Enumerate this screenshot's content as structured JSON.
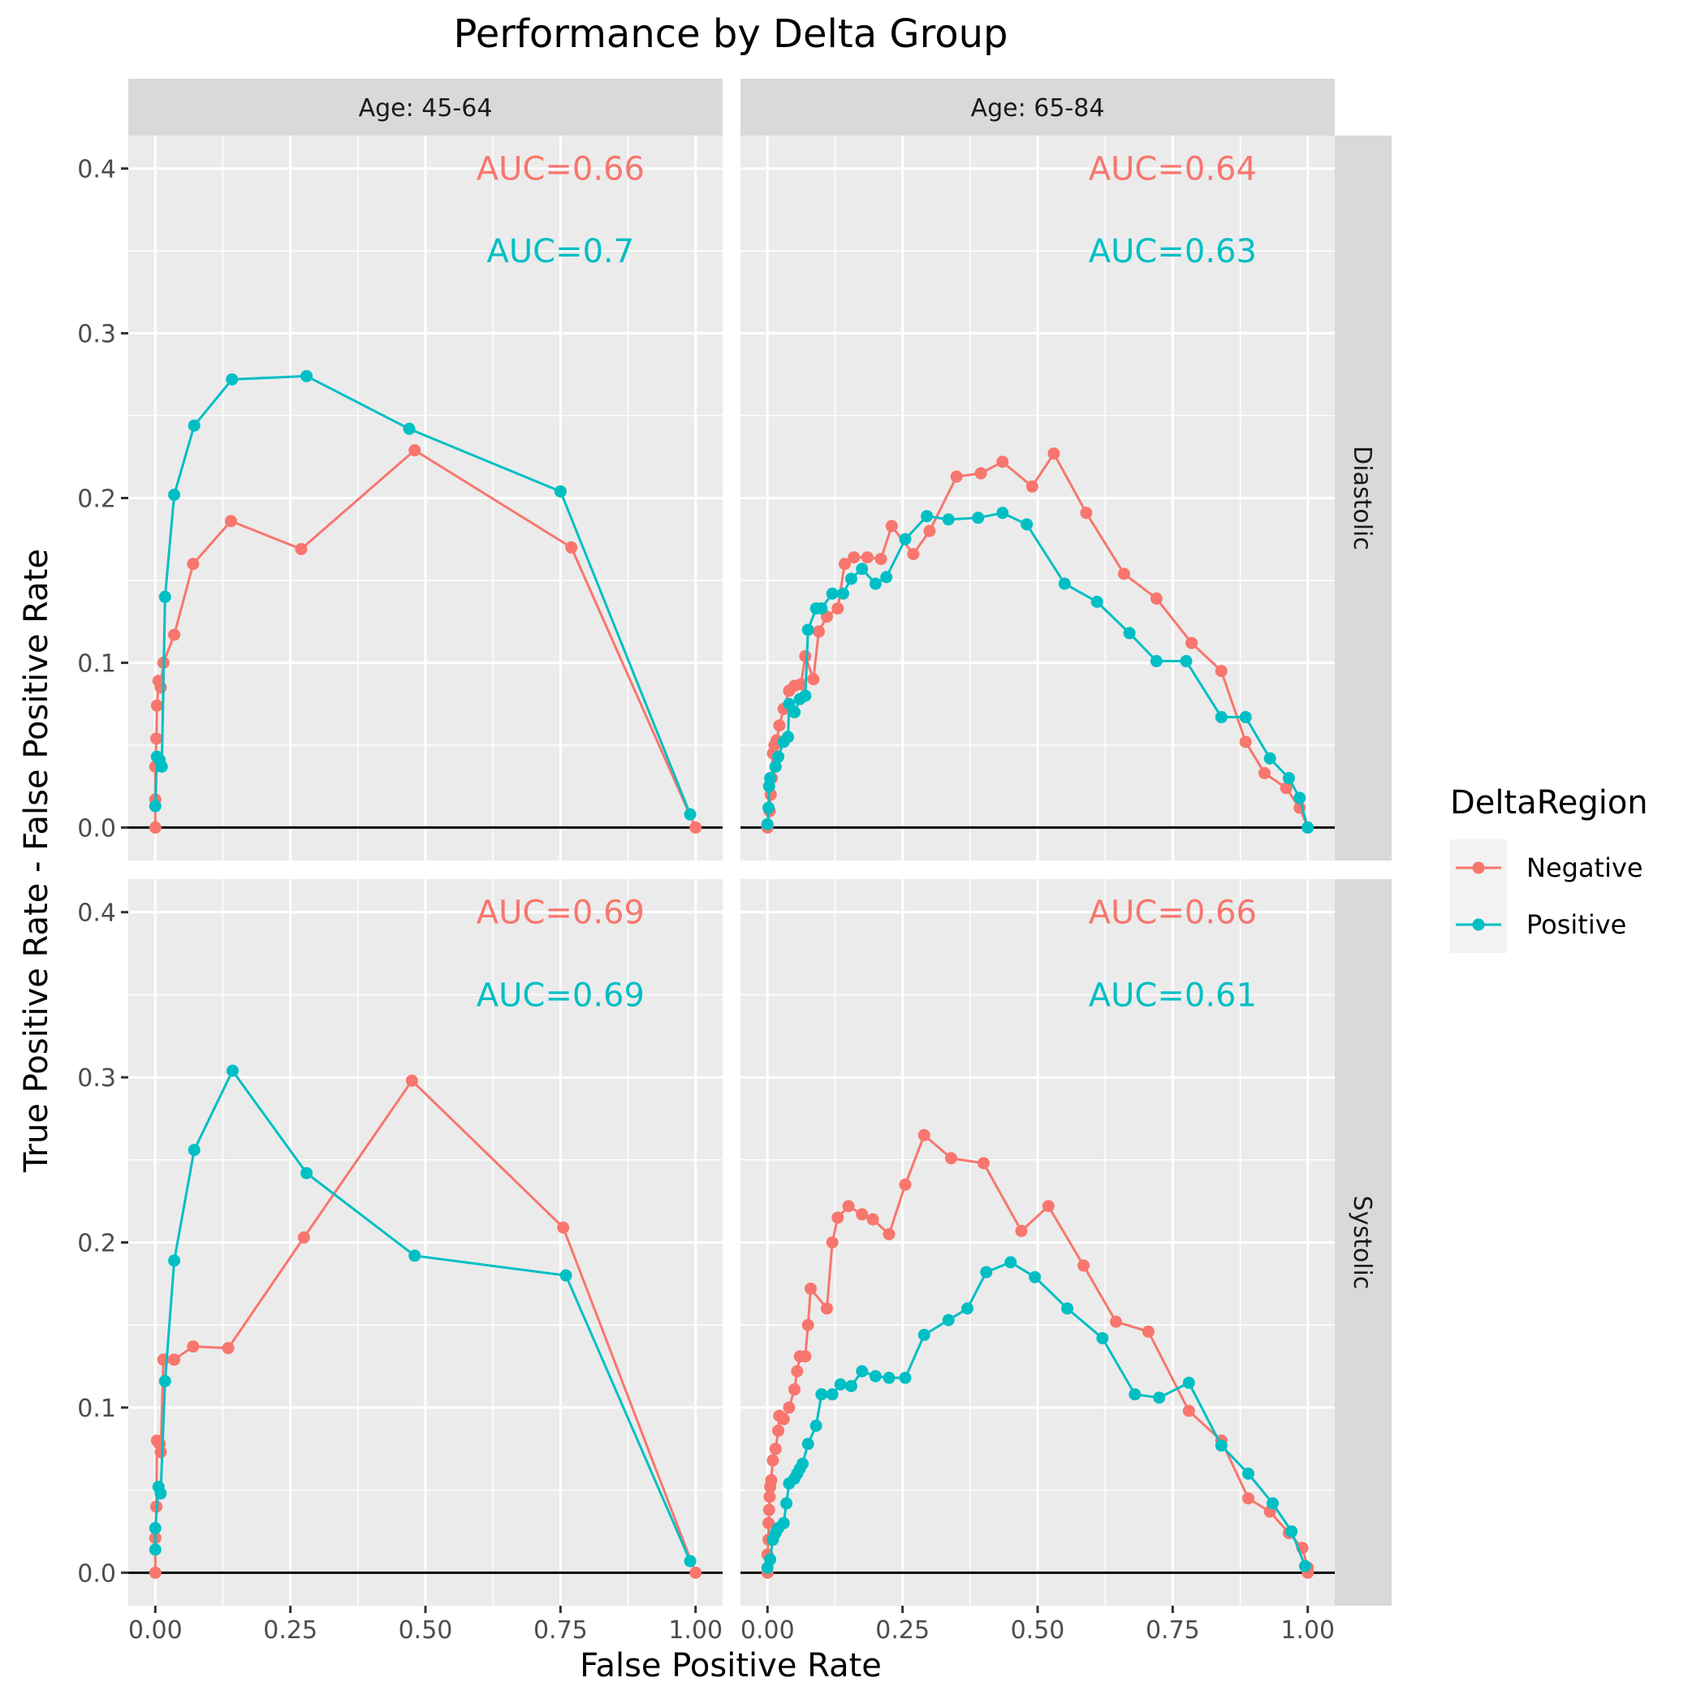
{
  "chart_data": {
    "type": "line",
    "title": "Performance by Delta Group",
    "xlabel": "False Positive Rate",
    "ylabel": "True Positive Rate - False Positive Rate",
    "xlim": [
      -0.05,
      1.05
    ],
    "ylim": [
      -0.02,
      0.42
    ],
    "x_ticks": [
      0,
      0.25,
      0.5,
      0.75,
      1
    ],
    "x_tick_labels": [
      "0.00",
      "0.25",
      "0.50",
      "0.75",
      "1.00"
    ],
    "y_ticks": [
      0,
      0.1,
      0.2,
      0.3,
      0.4
    ],
    "y_tick_labels": [
      "0.0",
      "0.1",
      "0.2",
      "0.3",
      "0.4"
    ],
    "grid": true,
    "reference_line_y": 0,
    "col_facets": [
      "Age: 45-64",
      "Age: 65-84"
    ],
    "row_facets": [
      "Diastolic",
      "Systolic"
    ],
    "legend": {
      "title": "DeltaRegion",
      "position": "right",
      "entries": [
        {
          "label": "Negative",
          "color": "#F8766D"
        },
        {
          "label": "Positive",
          "color": "#00BFC4"
        }
      ]
    },
    "panels": [
      {
        "col": 0,
        "row": 0,
        "auc_labels": {
          "Negative": "AUC=0.66",
          "Positive": "AUC=0.7"
        },
        "series": [
          {
            "name": "Negative",
            "color": "#F8766D",
            "points": [
              [
                0,
                0
              ],
              [
                0,
                0.017
              ],
              [
                0,
                0.037
              ],
              [
                0.002,
                0.054
              ],
              [
                0.003,
                0.074
              ],
              [
                0.006,
                0.089
              ],
              [
                0.01,
                0.085
              ],
              [
                0.015,
                0.1
              ],
              [
                0.035,
                0.117
              ],
              [
                0.07,
                0.16
              ],
              [
                0.14,
                0.186
              ],
              [
                0.27,
                0.169
              ],
              [
                0.48,
                0.229
              ],
              [
                0.77,
                0.17
              ],
              [
                1,
                0
              ]
            ]
          },
          {
            "name": "Positive",
            "color": "#00BFC4",
            "points": [
              [
                0,
                0.013
              ],
              [
                0.003,
                0.043
              ],
              [
                0.008,
                0.041
              ],
              [
                0.012,
                0.037
              ],
              [
                0.018,
                0.14
              ],
              [
                0.035,
                0.202
              ],
              [
                0.072,
                0.244
              ],
              [
                0.142,
                0.272
              ],
              [
                0.28,
                0.274
              ],
              [
                0.47,
                0.242
              ],
              [
                0.75,
                0.204
              ],
              [
                0.99,
                0.008
              ]
            ]
          }
        ]
      },
      {
        "col": 1,
        "row": 0,
        "auc_labels": {
          "Negative": "AUC=0.64",
          "Positive": "AUC=0.63"
        },
        "series": [
          {
            "name": "Negative",
            "color": "#F8766D",
            "points": [
              [
                0,
                0
              ],
              [
                0.004,
                0.01
              ],
              [
                0.006,
                0.02
              ],
              [
                0.008,
                0.03
              ],
              [
                0.01,
                0.045
              ],
              [
                0.013,
                0.05
              ],
              [
                0.017,
                0.053
              ],
              [
                0.022,
                0.062
              ],
              [
                0.03,
                0.072
              ],
              [
                0.04,
                0.083
              ],
              [
                0.05,
                0.086
              ],
              [
                0.062,
                0.087
              ],
              [
                0.07,
                0.104
              ],
              [
                0.085,
                0.09
              ],
              [
                0.095,
                0.119
              ],
              [
                0.11,
                0.128
              ],
              [
                0.13,
                0.133
              ],
              [
                0.143,
                0.16
              ],
              [
                0.16,
                0.164
              ],
              [
                0.185,
                0.164
              ],
              [
                0.21,
                0.163
              ],
              [
                0.23,
                0.183
              ],
              [
                0.27,
                0.166
              ],
              [
                0.3,
                0.18
              ],
              [
                0.35,
                0.213
              ],
              [
                0.395,
                0.215
              ],
              [
                0.435,
                0.222
              ],
              [
                0.49,
                0.207
              ],
              [
                0.53,
                0.227
              ],
              [
                0.59,
                0.191
              ],
              [
                0.66,
                0.154
              ],
              [
                0.72,
                0.139
              ],
              [
                0.785,
                0.112
              ],
              [
                0.84,
                0.095
              ],
              [
                0.885,
                0.052
              ],
              [
                0.92,
                0.033
              ],
              [
                0.96,
                0.024
              ],
              [
                0.985,
                0.012
              ],
              [
                1,
                0
              ]
            ]
          },
          {
            "name": "Positive",
            "color": "#00BFC4",
            "points": [
              [
                0,
                0.002
              ],
              [
                0.002,
                0.012
              ],
              [
                0.003,
                0.025
              ],
              [
                0.005,
                0.03
              ],
              [
                0.015,
                0.037
              ],
              [
                0.02,
                0.043
              ],
              [
                0.03,
                0.052
              ],
              [
                0.038,
                0.055
              ],
              [
                0.04,
                0.075
              ],
              [
                0.05,
                0.07
              ],
              [
                0.06,
                0.078
              ],
              [
                0.07,
                0.08
              ],
              [
                0.075,
                0.12
              ],
              [
                0.09,
                0.133
              ],
              [
                0.1,
                0.133
              ],
              [
                0.12,
                0.142
              ],
              [
                0.14,
                0.142
              ],
              [
                0.155,
                0.151
              ],
              [
                0.175,
                0.157
              ],
              [
                0.2,
                0.148
              ],
              [
                0.22,
                0.152
              ],
              [
                0.255,
                0.175
              ],
              [
                0.295,
                0.189
              ],
              [
                0.335,
                0.187
              ],
              [
                0.39,
                0.188
              ],
              [
                0.435,
                0.191
              ],
              [
                0.48,
                0.184
              ],
              [
                0.55,
                0.148
              ],
              [
                0.61,
                0.137
              ],
              [
                0.67,
                0.118
              ],
              [
                0.72,
                0.101
              ],
              [
                0.775,
                0.101
              ],
              [
                0.84,
                0.067
              ],
              [
                0.885,
                0.067
              ],
              [
                0.93,
                0.042
              ],
              [
                0.965,
                0.03
              ],
              [
                0.985,
                0.018
              ],
              [
                1,
                0
              ]
            ]
          }
        ]
      },
      {
        "col": 0,
        "row": 1,
        "auc_labels": {
          "Negative": "AUC=0.69",
          "Positive": "AUC=0.69"
        },
        "series": [
          {
            "name": "Negative",
            "color": "#F8766D",
            "points": [
              [
                0,
                0
              ],
              [
                0,
                0.021
              ],
              [
                0.002,
                0.04
              ],
              [
                0.003,
                0.08
              ],
              [
                0.008,
                0.078
              ],
              [
                0.01,
                0.073
              ],
              [
                0.015,
                0.129
              ],
              [
                0.035,
                0.129
              ],
              [
                0.07,
                0.137
              ],
              [
                0.135,
                0.136
              ],
              [
                0.275,
                0.203
              ],
              [
                0.475,
                0.298
              ],
              [
                0.755,
                0.209
              ],
              [
                1,
                0
              ]
            ]
          },
          {
            "name": "Positive",
            "color": "#00BFC4",
            "points": [
              [
                0,
                0.014
              ],
              [
                0,
                0.027
              ],
              [
                0.006,
                0.052
              ],
              [
                0.01,
                0.048
              ],
              [
                0.018,
                0.116
              ],
              [
                0.035,
                0.189
              ],
              [
                0.072,
                0.256
              ],
              [
                0.143,
                0.304
              ],
              [
                0.28,
                0.242
              ],
              [
                0.48,
                0.192
              ],
              [
                0.76,
                0.18
              ],
              [
                0.99,
                0.007
              ]
            ]
          }
        ]
      },
      {
        "col": 1,
        "row": 1,
        "auc_labels": {
          "Negative": "AUC=0.66",
          "Positive": "AUC=0.61"
        },
        "series": [
          {
            "name": "Negative",
            "color": "#F8766D",
            "points": [
              [
                0,
                0
              ],
              [
                0,
                0.011
              ],
              [
                0.002,
                0.02
              ],
              [
                0.002,
                0.03
              ],
              [
                0.003,
                0.038
              ],
              [
                0.004,
                0.046
              ],
              [
                0.005,
                0.052
              ],
              [
                0.007,
                0.056
              ],
              [
                0.01,
                0.068
              ],
              [
                0.015,
                0.075
              ],
              [
                0.02,
                0.086
              ],
              [
                0.022,
                0.095
              ],
              [
                0.03,
                0.093
              ],
              [
                0.04,
                0.1
              ],
              [
                0.05,
                0.111
              ],
              [
                0.055,
                0.122
              ],
              [
                0.06,
                0.131
              ],
              [
                0.07,
                0.131
              ],
              [
                0.075,
                0.15
              ],
              [
                0.08,
                0.172
              ],
              [
                0.11,
                0.16
              ],
              [
                0.12,
                0.2
              ],
              [
                0.13,
                0.215
              ],
              [
                0.15,
                0.222
              ],
              [
                0.175,
                0.217
              ],
              [
                0.195,
                0.214
              ],
              [
                0.225,
                0.205
              ],
              [
                0.255,
                0.235
              ],
              [
                0.29,
                0.265
              ],
              [
                0.34,
                0.251
              ],
              [
                0.4,
                0.248
              ],
              [
                0.47,
                0.207
              ],
              [
                0.52,
                0.222
              ],
              [
                0.585,
                0.186
              ],
              [
                0.645,
                0.152
              ],
              [
                0.705,
                0.146
              ],
              [
                0.78,
                0.098
              ],
              [
                0.84,
                0.08
              ],
              [
                0.89,
                0.045
              ],
              [
                0.93,
                0.037
              ],
              [
                0.965,
                0.024
              ],
              [
                0.99,
                0.015
              ],
              [
                1,
                0.003
              ],
              [
                1,
                0
              ]
            ]
          },
          {
            "name": "Positive",
            "color": "#00BFC4",
            "points": [
              [
                0,
                0.003
              ],
              [
                0.005,
                0.008
              ],
              [
                0.01,
                0.02
              ],
              [
                0.015,
                0.024
              ],
              [
                0.02,
                0.027
              ],
              [
                0.03,
                0.03
              ],
              [
                0.035,
                0.042
              ],
              [
                0.04,
                0.054
              ],
              [
                0.05,
                0.057
              ],
              [
                0.055,
                0.06
              ],
              [
                0.06,
                0.063
              ],
              [
                0.065,
                0.066
              ],
              [
                0.075,
                0.078
              ],
              [
                0.09,
                0.089
              ],
              [
                0.1,
                0.108
              ],
              [
                0.12,
                0.108
              ],
              [
                0.135,
                0.114
              ],
              [
                0.155,
                0.113
              ],
              [
                0.175,
                0.122
              ],
              [
                0.2,
                0.119
              ],
              [
                0.225,
                0.118
              ],
              [
                0.255,
                0.118
              ],
              [
                0.29,
                0.144
              ],
              [
                0.335,
                0.153
              ],
              [
                0.37,
                0.16
              ],
              [
                0.405,
                0.182
              ],
              [
                0.45,
                0.188
              ],
              [
                0.495,
                0.179
              ],
              [
                0.555,
                0.16
              ],
              [
                0.62,
                0.142
              ],
              [
                0.68,
                0.108
              ],
              [
                0.725,
                0.106
              ],
              [
                0.78,
                0.115
              ],
              [
                0.84,
                0.077
              ],
              [
                0.89,
                0.06
              ],
              [
                0.935,
                0.042
              ],
              [
                0.97,
                0.025
              ],
              [
                0.995,
                0.004
              ]
            ]
          }
        ]
      }
    ]
  }
}
